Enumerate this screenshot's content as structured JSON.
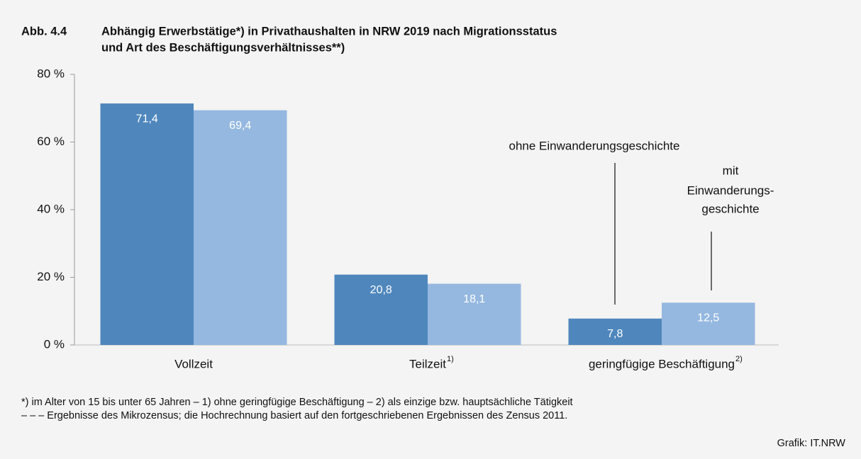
{
  "chart_data": {
    "type": "bar",
    "figure_number": "Abb. 4.4",
    "title_lines": [
      "Abhängig Erwerbstätige*) in Privathaushalten in NRW 2019 nach Migrationsstatus",
      "und Art des Beschäftigungsverhältnisses**)"
    ],
    "categories": [
      "Vollzeit",
      "Teilzeit",
      "geringfügige Beschäftigung"
    ],
    "category_superscripts": [
      null,
      "1)",
      "2)"
    ],
    "series": [
      {
        "name": [
          "ohne Einwanderungsgeschichte"
        ],
        "color": "#4f87bd",
        "values": [
          71.4,
          20.8,
          7.8
        ],
        "value_labels": [
          "71,4",
          "20,8",
          "7,8"
        ]
      },
      {
        "name": [
          "mit",
          "Einwanderungs-",
          "geschichte"
        ],
        "color": "#95b8e0",
        "values": [
          69.4,
          18.1,
          12.5
        ],
        "value_labels": [
          "69,4",
          "18,1",
          "12,5"
        ]
      }
    ],
    "ylim": [
      0,
      80
    ],
    "yticks": [
      {
        "value": 0,
        "label": "0 %"
      },
      {
        "value": 20,
        "label": "20 %"
      },
      {
        "value": 40,
        "label": "40 %"
      },
      {
        "value": 60,
        "label": "60 %"
      },
      {
        "value": 80,
        "label": "80 %"
      }
    ],
    "grid": false,
    "footnotes": [
      "*) im Alter von 15 bis unter 65 Jahren – 1) ohne geringfügige Beschäftigung – 2) als einzige bzw. hauptsächliche Tätigkeit",
      "– – – Ergebnisse des Mikrozensus; die Hochrechnung basiert auf den fortgeschriebenen Ergebnissen des Zensus 2011."
    ],
    "source": "Grafik: IT.NRW"
  }
}
